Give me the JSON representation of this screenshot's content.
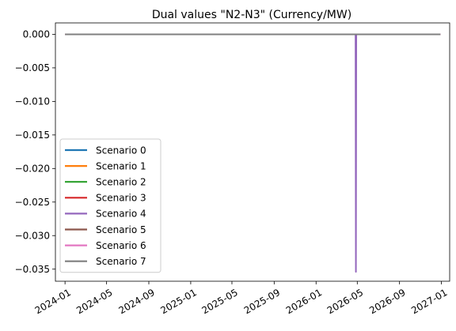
{
  "chart_data": {
    "type": "line",
    "title": "Dual values \"N2-N3\" (Currency/MW)",
    "xlabel": "",
    "ylabel": "",
    "xlim": [
      "2023-12-04",
      "2027-01-25"
    ],
    "ylim": [
      -0.0368,
      0.0017
    ],
    "x_ticks": [
      "2024-01",
      "2024-05",
      "2024-09",
      "2025-01",
      "2025-05",
      "2025-09",
      "2026-01",
      "2026-05",
      "2026-09",
      "2027-01"
    ],
    "y_ticks": [
      0.0,
      -0.005,
      -0.01,
      -0.015,
      -0.02,
      -0.025,
      -0.03,
      -0.035
    ],
    "y_tick_labels": [
      "0.000",
      "−0.005",
      "−0.010",
      "−0.015",
      "−0.020",
      "−0.025",
      "−0.030",
      "−0.035"
    ],
    "grid": false,
    "legend": "lower-left",
    "series": [
      {
        "name": "Scenario 0",
        "color": "#1f77b4",
        "points": [
          [
            "2024-01-01",
            0
          ],
          [
            "2026-12-29",
            0
          ]
        ]
      },
      {
        "name": "Scenario 1",
        "color": "#ff7f0e",
        "points": [
          [
            "2024-01-01",
            0
          ],
          [
            "2026-12-29",
            0
          ]
        ]
      },
      {
        "name": "Scenario 2",
        "color": "#2ca02c",
        "points": [
          [
            "2024-01-01",
            0
          ],
          [
            "2026-12-29",
            0
          ]
        ]
      },
      {
        "name": "Scenario 3",
        "color": "#d62728",
        "points": [
          [
            "2024-01-01",
            0
          ],
          [
            "2026-12-29",
            0
          ]
        ]
      },
      {
        "name": "Scenario 4",
        "color": "#9467bd",
        "points": [
          [
            "2024-01-01",
            0
          ],
          [
            "2026-04-26",
            0
          ],
          [
            "2026-04-27",
            -0.0354
          ],
          [
            "2026-04-28",
            0
          ],
          [
            "2026-12-29",
            0
          ]
        ]
      },
      {
        "name": "Scenario 5",
        "color": "#8c564b",
        "points": [
          [
            "2024-01-01",
            0
          ],
          [
            "2026-12-29",
            0
          ]
        ]
      },
      {
        "name": "Scenario 6",
        "color": "#e377c2",
        "points": [
          [
            "2024-01-01",
            0
          ],
          [
            "2026-12-29",
            0
          ]
        ]
      },
      {
        "name": "Scenario 7",
        "color": "#7f7f7f",
        "points": [
          [
            "2024-01-01",
            0
          ],
          [
            "2026-12-29",
            0
          ]
        ]
      }
    ]
  }
}
